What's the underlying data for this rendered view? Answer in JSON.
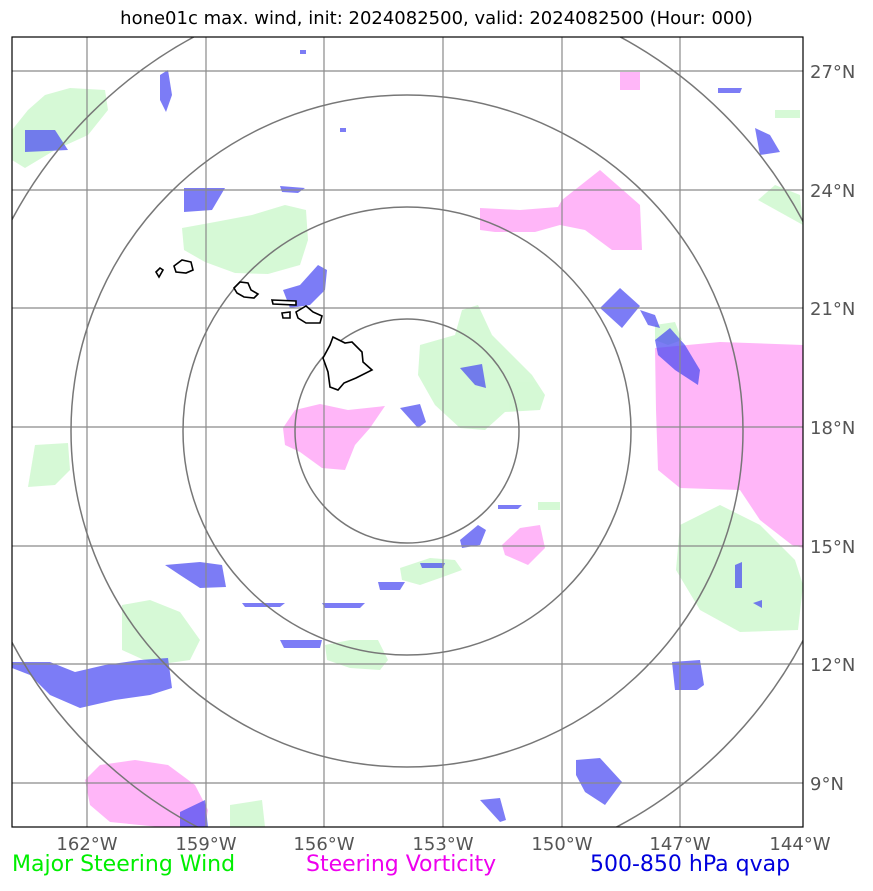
{
  "title": "hone01c max. wind, init: 2024082500, valid: 2024082500 (Hour: 000)",
  "map": {
    "lon_ticks": [
      "162°W",
      "159°W",
      "156°W",
      "153°W",
      "150°W",
      "147°W",
      "144°W"
    ],
    "lat_ticks": [
      "27°N",
      "24°N",
      "21°N",
      "18°N",
      "15°N",
      "12°N",
      "9°N"
    ],
    "range_rings_count": 4,
    "colors": {
      "wind": "#c8f7c8",
      "vorticity": "#ff9ef5",
      "qvap": "#4a4af2",
      "grid": "#8a8a8a",
      "rings": "#777777",
      "coast": "#000000"
    }
  },
  "legend": {
    "items": [
      {
        "label": "Major Steering Wind",
        "color": "#00ee00"
      },
      {
        "label": "Steering Vorticity",
        "color": "#ee00ee"
      },
      {
        "label": "500-850 hPa qvap",
        "color": "#0000dd"
      }
    ]
  }
}
